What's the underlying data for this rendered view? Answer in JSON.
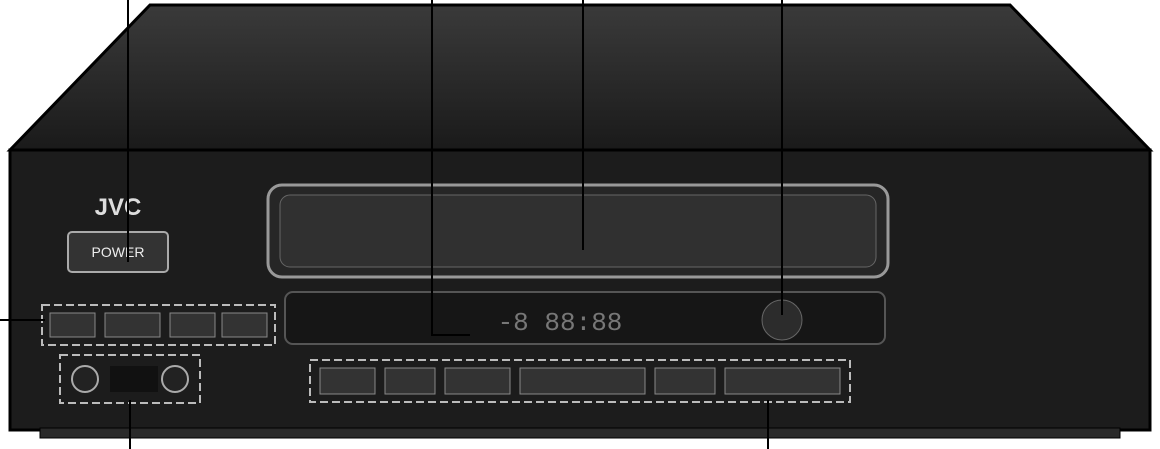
{
  "brand": "JVC",
  "power_button": {
    "label": "POWER"
  }
}
